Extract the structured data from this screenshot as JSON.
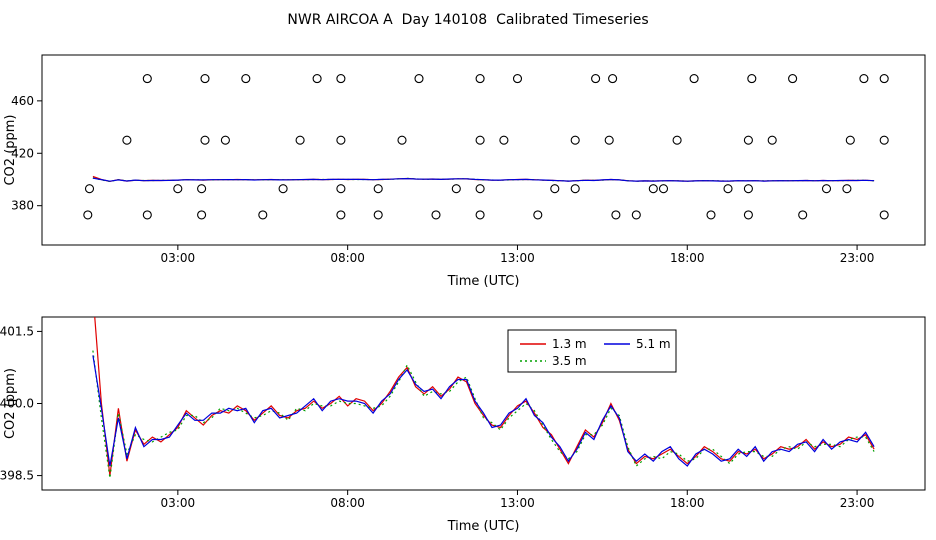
{
  "title": "NWR AIRCOA A  Day 140108  Calibrated Timeseries",
  "chart_data": [
    {
      "type": "scatter",
      "panel": "top",
      "xlabel": "Time (UTC)",
      "ylabel": "CO2 (ppm)",
      "xlim": [
        -1,
        25
      ],
      "ylim": [
        350,
        495
      ],
      "xticks": [
        {
          "value": 3,
          "label": "03:00"
        },
        {
          "value": 8,
          "label": "08:00"
        },
        {
          "value": 13,
          "label": "13:00"
        },
        {
          "value": 18,
          "label": "18:00"
        },
        {
          "value": 23,
          "label": "23:00"
        }
      ],
      "yticks": [
        {
          "value": 380,
          "label": "380"
        },
        {
          "value": 420,
          "label": "420"
        },
        {
          "value": 460,
          "label": "460"
        }
      ],
      "point_color": "#000000",
      "calibration_levels": [
        {
          "co2_ppm": 477,
          "times": [
            2.1,
            3.8,
            5.0,
            7.1,
            7.8,
            10.1,
            11.9,
            13.0,
            15.3,
            15.8,
            18.2,
            19.9,
            21.1,
            23.2,
            23.8
          ]
        },
        {
          "co2_ppm": 430,
          "times": [
            1.5,
            3.8,
            4.4,
            6.6,
            7.8,
            9.6,
            11.9,
            12.6,
            14.7,
            15.7,
            17.7,
            19.8,
            20.5,
            22.8,
            23.8
          ]
        },
        {
          "co2_ppm": 393,
          "times": [
            0.4,
            3.0,
            3.7,
            6.1,
            7.8,
            8.9,
            11.2,
            11.9,
            14.1,
            14.7,
            17.0,
            17.3,
            19.2,
            19.8,
            22.1,
            22.7
          ]
        },
        {
          "co2_ppm": 373,
          "times": [
            0.35,
            2.1,
            3.7,
            5.5,
            7.8,
            8.9,
            10.6,
            11.9,
            13.6,
            15.9,
            16.5,
            18.7,
            19.8,
            21.4,
            23.8
          ]
        }
      ]
    },
    {
      "type": "line",
      "panel": "bottom",
      "xlabel": "Time (UTC)",
      "ylabel": "CO2 (ppm)",
      "xlim": [
        -1,
        25
      ],
      "ylim": [
        398.2,
        401.8
      ],
      "xticks": [
        {
          "value": 3,
          "label": "03:00"
        },
        {
          "value": 8,
          "label": "08:00"
        },
        {
          "value": 13,
          "label": "13:00"
        },
        {
          "value": 18,
          "label": "18:00"
        },
        {
          "value": 23,
          "label": "23:00"
        }
      ],
      "yticks": [
        {
          "value": 398.5,
          "label": "398.5"
        },
        {
          "value": 400.0,
          "label": "400.0"
        },
        {
          "value": 401.5,
          "label": "401.5"
        }
      ],
      "x": [
        0.5,
        0.75,
        1,
        1.25,
        1.5,
        1.75,
        2,
        2.25,
        2.5,
        2.75,
        3,
        3.25,
        3.5,
        3.75,
        4,
        4.25,
        4.5,
        4.75,
        5,
        5.25,
        5.5,
        5.75,
        6,
        6.25,
        6.5,
        6.75,
        7,
        7.25,
        7.5,
        7.75,
        8,
        8.25,
        8.5,
        8.75,
        9,
        9.25,
        9.5,
        9.75,
        10,
        10.25,
        10.5,
        10.75,
        11,
        11.25,
        11.5,
        11.75,
        12,
        12.25,
        12.5,
        12.75,
        13,
        13.25,
        13.5,
        13.75,
        14,
        14.25,
        14.5,
        14.75,
        15,
        15.25,
        15.5,
        15.75,
        16,
        16.25,
        16.5,
        16.75,
        17,
        17.25,
        17.5,
        17.75,
        18,
        18.25,
        18.5,
        18.75,
        19,
        19.25,
        19.5,
        19.75,
        20,
        20.25,
        20.5,
        20.75,
        21,
        21.25,
        21.5,
        21.75,
        22,
        22.25,
        22.5,
        22.75,
        23,
        23.25,
        23.5
      ],
      "series": [
        {
          "name": "1.3 m",
          "color": "#e00000",
          "style": "solid",
          "values": [
            402.3,
            400.0,
            398.5,
            399.9,
            398.8,
            399.45,
            399.15,
            399.3,
            399.2,
            399.35,
            399.5,
            399.85,
            399.7,
            399.55,
            399.75,
            399.85,
            399.8,
            399.95,
            399.85,
            399.65,
            399.8,
            399.95,
            399.75,
            399.7,
            399.85,
            399.9,
            400.05,
            399.9,
            400.0,
            400.15,
            399.95,
            400.1,
            400.05,
            399.85,
            400.0,
            400.25,
            400.55,
            400.75,
            400.35,
            400.2,
            400.35,
            400.15,
            400.3,
            400.55,
            400.45,
            400.0,
            399.75,
            399.55,
            399.5,
            399.75,
            399.95,
            400.05,
            399.8,
            399.5,
            399.35,
            399.05,
            398.75,
            399.1,
            399.45,
            399.3,
            399.6,
            400.0,
            399.65,
            399.05,
            398.75,
            398.9,
            398.85,
            398.95,
            399.05,
            398.9,
            398.75,
            398.9,
            399.1,
            399.0,
            398.85,
            398.8,
            399.0,
            398.95,
            399.05,
            398.85,
            398.95,
            399.1,
            399.05,
            399.1,
            399.25,
            399.05,
            399.2,
            399.1,
            399.15,
            399.3,
            399.25,
            399.35,
            399.05
          ]
        },
        {
          "name": "3.5 m",
          "color": "#00a000",
          "style": "dotted",
          "values": [
            401.1,
            399.7,
            398.45,
            399.8,
            398.95,
            399.35,
            399.25,
            399.2,
            399.3,
            399.4,
            399.45,
            399.75,
            399.75,
            399.6,
            399.7,
            399.9,
            399.85,
            399.9,
            399.8,
            399.7,
            399.75,
            399.85,
            399.8,
            399.65,
            399.9,
            399.85,
            400.0,
            399.95,
            399.95,
            400.05,
            400.0,
            400.0,
            399.95,
            399.9,
            399.95,
            400.15,
            400.45,
            400.8,
            400.45,
            400.15,
            400.25,
            400.2,
            400.25,
            400.45,
            400.55,
            400.1,
            399.7,
            399.6,
            399.45,
            399.7,
            399.85,
            400.0,
            399.85,
            399.55,
            399.25,
            399.0,
            398.85,
            399.0,
            399.35,
            399.35,
            399.55,
            399.9,
            399.75,
            399.1,
            398.7,
            398.85,
            398.9,
            398.85,
            399.0,
            398.95,
            398.8,
            398.85,
            399.05,
            399.05,
            398.9,
            398.75,
            398.95,
            399.0,
            399.0,
            398.9,
            398.9,
            399.05,
            399.1,
            399.05,
            399.2,
            399.1,
            399.15,
            399.15,
            399.1,
            399.25,
            399.3,
            399.3,
            399.0
          ]
        },
        {
          "name": "5.1 m",
          "color": "#0000dd",
          "style": "solid",
          "values": [
            401.0,
            399.9,
            398.7,
            399.7,
            398.85,
            399.5,
            399.1,
            399.25,
            399.25,
            399.3,
            399.55,
            399.8,
            399.65,
            399.65,
            399.8,
            399.8,
            399.9,
            399.85,
            399.9,
            399.6,
            399.85,
            399.9,
            399.7,
            399.75,
            399.8,
            399.95,
            400.1,
            399.85,
            400.05,
            400.1,
            400.05,
            400.05,
            400.0,
            399.8,
            400.05,
            400.2,
            400.5,
            400.7,
            400.4,
            400.25,
            400.3,
            400.1,
            400.35,
            400.5,
            400.5,
            400.05,
            399.8,
            399.5,
            399.55,
            399.8,
            399.9,
            400.1,
            399.75,
            399.6,
            399.3,
            399.1,
            398.8,
            399.05,
            399.4,
            399.25,
            399.65,
            399.95,
            399.7,
            399.0,
            398.8,
            398.95,
            398.8,
            399.0,
            399.1,
            398.85,
            398.7,
            398.95,
            399.05,
            398.95,
            398.8,
            398.85,
            399.05,
            398.9,
            399.1,
            398.8,
            399.0,
            399.05,
            399.0,
            399.15,
            399.2,
            399.0,
            399.25,
            399.05,
            399.2,
            399.25,
            399.2,
            399.4,
            399.1
          ]
        }
      ],
      "legend": {
        "position": "top-center",
        "entries": [
          "1.3 m",
          "3.5 m",
          "5.1 m"
        ]
      }
    }
  ]
}
